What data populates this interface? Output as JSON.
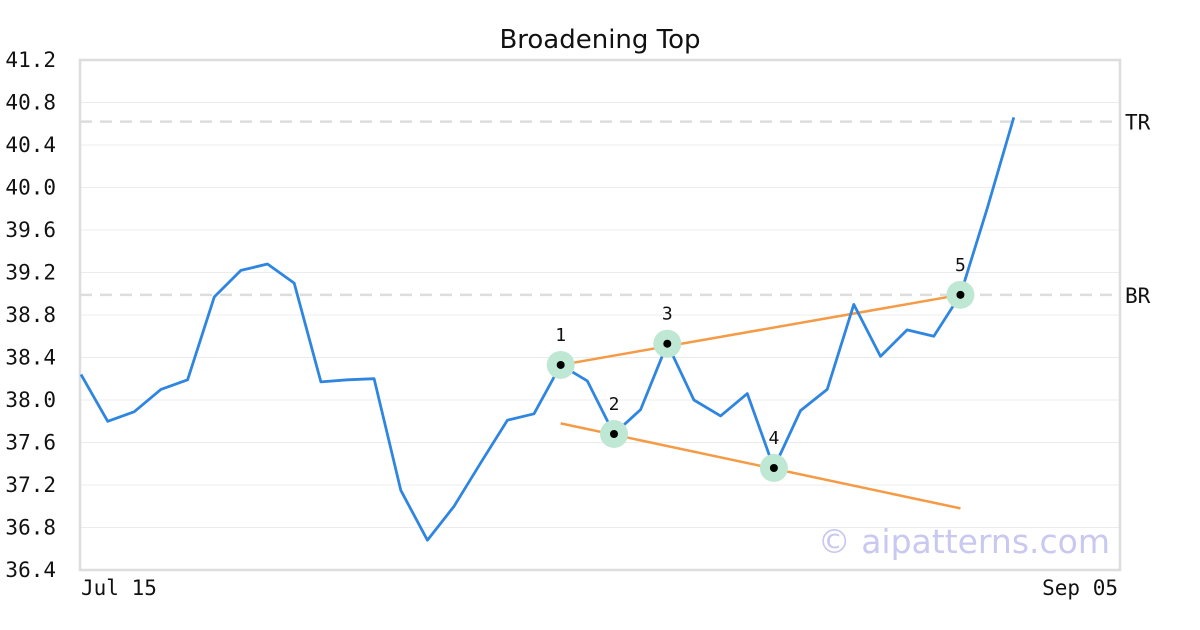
{
  "chart_data": {
    "type": "line",
    "title": "Broadening Top",
    "xlabel": "",
    "ylabel": "",
    "ylim": [
      36.4,
      41.2
    ],
    "y_ticks": [
      "36.4",
      "36.8",
      "37.2",
      "37.6",
      "38.0",
      "38.4",
      "38.8",
      "39.2",
      "39.6",
      "40.0",
      "40.4",
      "40.8",
      "41.2"
    ],
    "x_tick_labels": [
      "Jul 15",
      "Sep 05"
    ],
    "grid": true,
    "colors": {
      "price": "#2f86e0",
      "trendline": "#f59a45",
      "reference": "#dddddd",
      "pivot_halo": "#bfe8d4",
      "pivot_dot": "#000000",
      "watermark": "#c8c8f0"
    },
    "series": [
      {
        "values": [
          38.24,
          37.8,
          37.89,
          38.1,
          38.19,
          38.97,
          39.22,
          39.28,
          39.1,
          38.17,
          38.19,
          38.2,
          37.15,
          36.68,
          37.0,
          37.41,
          37.81,
          37.87,
          38.33,
          38.18,
          37.68,
          37.91,
          38.53,
          38.0,
          37.85,
          38.06,
          37.36,
          37.9,
          38.1,
          38.9,
          38.41,
          38.66,
          38.6,
          38.99,
          39.8,
          40.66
        ]
      }
    ],
    "reference_lines": [
      {
        "label": "TR",
        "value": 40.62
      },
      {
        "label": "BR",
        "value": 38.99
      }
    ],
    "pivots": [
      {
        "label": "1",
        "index": 18,
        "value": 38.33
      },
      {
        "label": "2",
        "index": 20,
        "value": 37.68
      },
      {
        "label": "3",
        "index": 22,
        "value": 38.53
      },
      {
        "label": "4",
        "index": 26,
        "value": 37.36
      },
      {
        "label": "5",
        "index": 33,
        "value": 38.99
      }
    ],
    "trendlines": [
      {
        "name": "upper",
        "from": {
          "index": 18,
          "value": 38.33
        },
        "to": {
          "index": 33,
          "value": 38.99
        }
      },
      {
        "name": "lower",
        "from": {
          "index": 18,
          "value": 37.78
        },
        "to": {
          "index": 33,
          "value": 36.98
        }
      }
    ],
    "watermark": "© aipatterns.com"
  }
}
